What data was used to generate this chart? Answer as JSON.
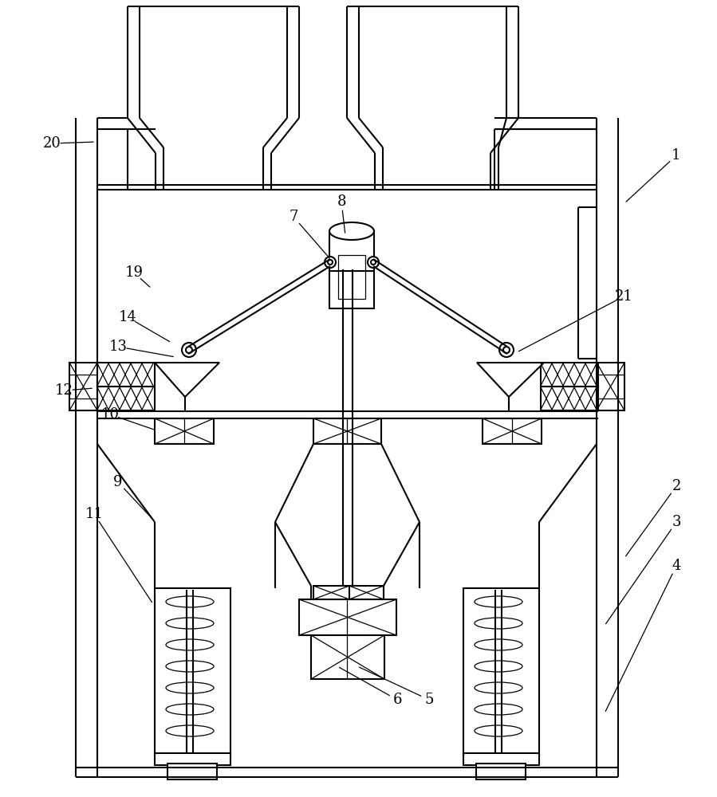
{
  "bg": "#ffffff",
  "lc": "#000000",
  "lw": 1.5,
  "lt": 0.9,
  "fw": 8.99,
  "fh": 10.0,
  "annotations": [
    [
      "1",
      848,
      195,
      783,
      255
    ],
    [
      "2",
      848,
      610,
      783,
      700
    ],
    [
      "3",
      848,
      655,
      758,
      785
    ],
    [
      "4",
      848,
      710,
      758,
      895
    ],
    [
      "5",
      538,
      878,
      448,
      836
    ],
    [
      "6",
      498,
      878,
      423,
      836
    ],
    [
      "7",
      368,
      272,
      415,
      326
    ],
    [
      "8",
      428,
      253,
      433,
      295
    ],
    [
      "9",
      148,
      605,
      192,
      652
    ],
    [
      "10",
      138,
      520,
      196,
      540
    ],
    [
      "11",
      118,
      645,
      192,
      758
    ],
    [
      "12",
      80,
      490,
      118,
      487
    ],
    [
      "13",
      148,
      435,
      220,
      448
    ],
    [
      "14",
      160,
      398,
      215,
      430
    ],
    [
      "19",
      168,
      342,
      190,
      362
    ],
    [
      "20",
      65,
      180,
      120,
      178
    ],
    [
      "21",
      782,
      372,
      648,
      442
    ]
  ]
}
